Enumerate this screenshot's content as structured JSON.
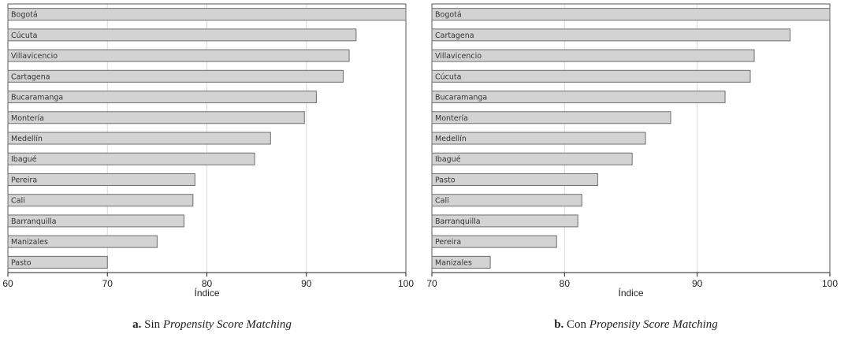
{
  "chart_data": [
    {
      "type": "bar",
      "orientation": "horizontal",
      "xlabel": "Índice",
      "xlim": [
        60,
        100
      ],
      "xticks": [
        60,
        70,
        80,
        90,
        100
      ],
      "grid": true,
      "categories": [
        "Bogotá",
        "Cúcuta",
        "Villavicencio",
        "Cartagena",
        "Bucaramanga",
        "Montería",
        "Medellín",
        "Ibagué",
        "Pereira",
        "Cali",
        "Barranquilla",
        "Manizales",
        "Pasto"
      ],
      "values": [
        100,
        95,
        94.3,
        93.7,
        91,
        89.8,
        86.4,
        84.8,
        78.8,
        78.6,
        77.7,
        75,
        70
      ],
      "caption": {
        "letter": "a.",
        "prefix": "Sin",
        "emphasis": "Propensity Score Matching"
      }
    },
    {
      "type": "bar",
      "orientation": "horizontal",
      "xlabel": "Índice",
      "xlim": [
        70,
        100
      ],
      "xticks": [
        70,
        80,
        90,
        100
      ],
      "grid": true,
      "categories": [
        "Bogotá",
        "Cartagena",
        "Villavicencio",
        "Cúcuta",
        "Bucaramanga",
        "Montería",
        "Medellín",
        "Ibagué",
        "Pasto",
        "Cali",
        "Barranquilla",
        "Pereira",
        "Manizales"
      ],
      "values": [
        100,
        97,
        94.3,
        94,
        92.1,
        88,
        86.1,
        85.1,
        82.5,
        81.3,
        81,
        79.4,
        74.4
      ],
      "caption": {
        "letter": "b.",
        "prefix": "Con",
        "emphasis": "Propensity Score Matching"
      }
    }
  ]
}
